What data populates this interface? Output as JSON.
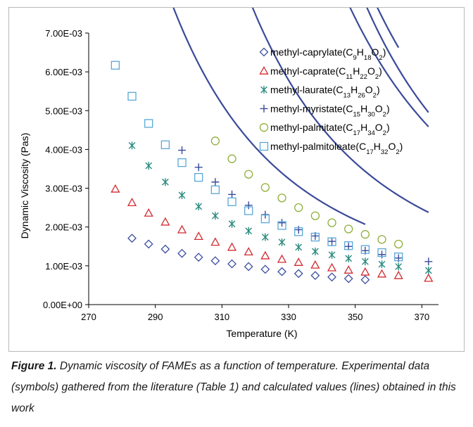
{
  "chart_data": {
    "type": "scatter",
    "xlabel": "Temperature (K)",
    "ylabel": "Dynamic Viscosity (Pas)",
    "xlim": [
      270,
      375
    ],
    "ylim": [
      0,
      0.007
    ],
    "xticks": [
      270,
      290,
      310,
      330,
      350,
      370
    ],
    "xtick_labels": [
      "270",
      "290",
      "310",
      "330",
      "350",
      "370"
    ],
    "yticks": [
      0,
      0.001,
      0.002,
      0.003,
      0.004,
      0.005,
      0.006,
      0.007
    ],
    "ytick_labels": [
      "0.00E+00",
      "1.00E-03",
      "2.00E-03",
      "3.00E-03",
      "4.00E-03",
      "5.00E-03",
      "6.00E-03",
      "7.00E-03"
    ],
    "grid": false,
    "legend_position": "top-right",
    "line_color": "#3a4a9a",
    "series": [
      {
        "name": "methyl-caprylate",
        "formula": [
          "C",
          "9",
          "H",
          "18",
          "O",
          "2"
        ],
        "marker": "diamond",
        "color": "#3a4fa0",
        "x": [
          283,
          288,
          293,
          298,
          303,
          308,
          313,
          318,
          323,
          328,
          333,
          338,
          343,
          348,
          353
        ],
        "y": [
          0.00171,
          0.00156,
          0.00143,
          0.00132,
          0.00122,
          0.00113,
          0.00105,
          0.00098,
          0.00091,
          0.00085,
          0.0008,
          0.00075,
          0.00071,
          0.00067,
          0.00064
        ],
        "fit": {
          "A": -11.075,
          "B": 1336.3,
          "t0": 80,
          "xmin": 283,
          "xmax": 353
        }
      },
      {
        "name": "methyl-caprate",
        "formula": [
          "C",
          "11",
          "H",
          "22",
          "O",
          "2"
        ],
        "marker": "triangle",
        "color": "#d22b30",
        "x": [
          278,
          283,
          288,
          293,
          298,
          303,
          308,
          313,
          318,
          323,
          328,
          333,
          338,
          343,
          348,
          353,
          358,
          363,
          372
        ],
        "y": [
          0.00298,
          0.00263,
          0.00236,
          0.00213,
          0.00193,
          0.00176,
          0.00161,
          0.00148,
          0.00136,
          0.00126,
          0.00117,
          0.00109,
          0.00102,
          0.00095,
          0.00089,
          0.00084,
          0.00079,
          0.00075,
          0.00068
        ],
        "fit": {
          "A": -11.25,
          "B": 1500,
          "t0": 84,
          "xmin": 278,
          "xmax": 372
        }
      },
      {
        "name": "methyl-laurate",
        "formula": [
          "C",
          "13",
          "H",
          "26",
          "O",
          "2"
        ],
        "marker": "asterisk",
        "color": "#2a8b7f",
        "x": [
          283,
          288,
          293,
          298,
          303,
          308,
          313,
          318,
          323,
          328,
          333,
          338,
          343,
          348,
          353,
          358,
          363,
          372
        ],
        "y": [
          0.0041,
          0.00358,
          0.00316,
          0.00282,
          0.00253,
          0.00229,
          0.00208,
          0.0019,
          0.00174,
          0.00161,
          0.00148,
          0.00137,
          0.00128,
          0.00119,
          0.00111,
          0.00104,
          0.00098,
          0.00088
        ],
        "fit": {
          "A": -11.3,
          "B": 1745,
          "t0": 77,
          "xmin": 283,
          "xmax": 372
        }
      },
      {
        "name": "methyl-myristate",
        "formula": [
          "C",
          "15",
          "H",
          "30",
          "O",
          "2"
        ],
        "marker": "plus",
        "color": "#3a4a9a",
        "x": [
          298,
          303,
          308,
          313,
          318,
          323,
          328,
          333,
          338,
          343,
          348,
          353,
          358,
          363,
          372
        ],
        "y": [
          0.00398,
          0.00354,
          0.00316,
          0.00284,
          0.00256,
          0.00232,
          0.00211,
          0.00193,
          0.00177,
          0.00163,
          0.0015,
          0.00139,
          0.00129,
          0.0012,
          0.00111
        ],
        "fit": {
          "A": -11.0,
          "B": 1480,
          "t0": 112,
          "xmin": 298,
          "xmax": 372
        }
      },
      {
        "name": "methyl-palmitate",
        "formula": [
          "C",
          "17",
          "H",
          "34",
          "O",
          "2"
        ],
        "marker": "circle",
        "color": "#8fae3a",
        "x": [
          308,
          313,
          318,
          323,
          328,
          333,
          338,
          343,
          348,
          353,
          358,
          363
        ],
        "y": [
          0.00422,
          0.00376,
          0.00336,
          0.00302,
          0.00275,
          0.0025,
          0.00229,
          0.00211,
          0.00195,
          0.00181,
          0.00168,
          0.00156
        ],
        "fit": {
          "A": -11.0,
          "B": 1705,
          "t0": 104,
          "xmin": 308,
          "xmax": 363
        }
      },
      {
        "name": "methyl-palmitoleate",
        "formula": [
          "C",
          "17",
          "H",
          "32",
          "O",
          "2"
        ],
        "marker": "square",
        "color": "#5aa7d8",
        "x": [
          278,
          283,
          288,
          293,
          298,
          303,
          308,
          313,
          318,
          323,
          328,
          333,
          338,
          343,
          348,
          353,
          358,
          363
        ],
        "y": [
          0.00617,
          0.00537,
          0.00467,
          0.00412,
          0.00366,
          0.00328,
          0.00296,
          0.00265,
          0.00242,
          0.00221,
          0.00204,
          0.00188,
          0.00174,
          0.00162,
          0.00152,
          0.00142,
          0.00134,
          0.00123
        ],
        "fit": {
          "A": -11.05,
          "B": 1635,
          "t0": 92,
          "xmin": 278,
          "xmax": 363
        }
      }
    ]
  },
  "caption": {
    "label": "Figure 1.",
    "text": " Dynamic viscosity of FAMEs as a function of temperature. Experimental data (symbols) gathered from the literature (Table 1) and calculated values (lines) obtained in this work"
  }
}
